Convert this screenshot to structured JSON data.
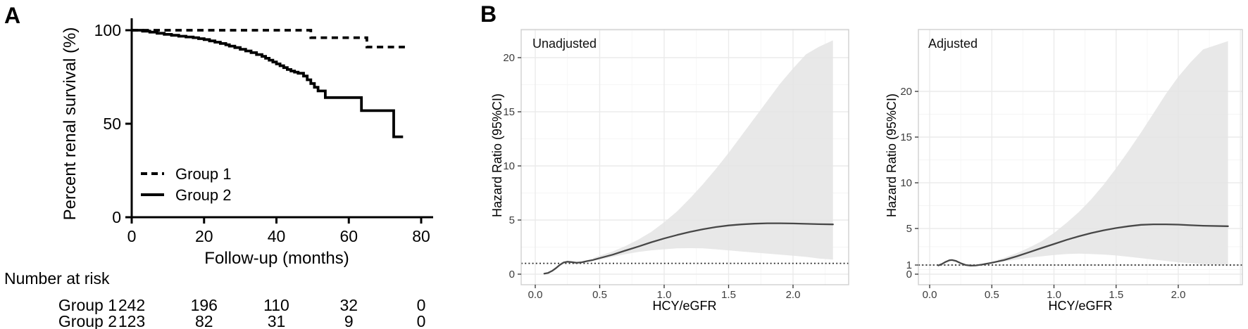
{
  "figure": {
    "panels": [
      {
        "label": "A"
      },
      {
        "label": "B"
      }
    ],
    "colors": {
      "km_line": "#000000",
      "spline_curve": "#474747",
      "ci_band": "#e4e4e4",
      "ref_line": "#2a2a2a",
      "gridline_major": "#ebebeb",
      "gridline_minor": "#f5f5f5",
      "panel_border": "#cfcfcf"
    }
  },
  "chart_data": [
    {
      "id": "km_survival",
      "type": "line",
      "subtype": "kaplan-meier-step",
      "xlabel": "Follow-up (months)",
      "ylabel": "Percent renal survival (%)",
      "xticks": [
        0,
        20,
        40,
        60,
        80
      ],
      "yticks": [
        0,
        50,
        100
      ],
      "xlim": [
        0,
        83
      ],
      "ylim": [
        0,
        100
      ],
      "grid": false,
      "legend_position": "inside-lower-left",
      "series": [
        {
          "name": "Group 1",
          "style": "dashed",
          "points": [
            [
              0,
              100
            ],
            [
              49.5,
              100
            ],
            [
              49.5,
              96
            ],
            [
              65,
              96
            ],
            [
              65,
              91
            ],
            [
              75.5,
              91
            ]
          ]
        },
        {
          "name": "Group 2",
          "style": "solid",
          "points": [
            [
              0,
              100
            ],
            [
              3,
              100
            ],
            [
              3,
              99.5
            ],
            [
              5,
              99.5
            ],
            [
              5,
              99
            ],
            [
              7,
              99
            ],
            [
              7,
              98.4
            ],
            [
              9,
              98.4
            ],
            [
              9,
              97.8
            ],
            [
              11,
              97.8
            ],
            [
              11,
              97.3
            ],
            [
              13,
              97.3
            ],
            [
              13,
              96.8
            ],
            [
              15,
              96.8
            ],
            [
              15,
              96.4
            ],
            [
              17,
              96.4
            ],
            [
              17,
              96
            ],
            [
              18.5,
              96
            ],
            [
              18.5,
              95.5
            ],
            [
              20,
              95.5
            ],
            [
              20,
              95
            ],
            [
              21.5,
              95
            ],
            [
              21.5,
              94.3
            ],
            [
              23,
              94.3
            ],
            [
              23,
              93.6
            ],
            [
              24.5,
              93.6
            ],
            [
              24.5,
              92.9
            ],
            [
              26,
              92.9
            ],
            [
              26,
              92.2
            ],
            [
              27,
              92.2
            ],
            [
              27,
              91.5
            ],
            [
              28.5,
              91.5
            ],
            [
              28.5,
              90.7
            ],
            [
              30,
              90.7
            ],
            [
              30,
              89.8
            ],
            [
              31.5,
              89.8
            ],
            [
              31.5,
              88.9
            ],
            [
              33,
              88.9
            ],
            [
              33,
              88
            ],
            [
              34.5,
              88
            ],
            [
              34.5,
              87
            ],
            [
              36,
              87
            ],
            [
              36,
              86
            ],
            [
              37,
              86
            ],
            [
              37,
              85
            ],
            [
              38,
              85
            ],
            [
              38,
              84
            ],
            [
              39,
              84
            ],
            [
              39,
              83
            ],
            [
              40,
              83
            ],
            [
              40,
              82
            ],
            [
              41,
              82
            ],
            [
              41,
              81
            ],
            [
              42,
              81
            ],
            [
              42,
              80
            ],
            [
              43,
              80
            ],
            [
              43,
              79
            ],
            [
              44,
              79
            ],
            [
              44,
              78.2
            ],
            [
              45,
              78.2
            ],
            [
              45,
              77.6
            ],
            [
              46,
              77.6
            ],
            [
              46,
              77
            ],
            [
              47.5,
              77
            ],
            [
              47.5,
              75.5
            ],
            [
              48.5,
              75.5
            ],
            [
              48.5,
              73.5
            ],
            [
              49.5,
              73.5
            ],
            [
              49.5,
              71.5
            ],
            [
              50.5,
              71.5
            ],
            [
              50.5,
              69.5
            ],
            [
              51.5,
              69.5
            ],
            [
              51.5,
              67.5
            ],
            [
              53.5,
              67.5
            ],
            [
              53.5,
              64
            ],
            [
              63.5,
              64
            ],
            [
              63.5,
              57
            ],
            [
              72.4,
              57
            ],
            [
              72.4,
              43
            ],
            [
              75,
              43
            ]
          ]
        }
      ],
      "risk_table": {
        "title": "Number at risk",
        "timepoints": [
          0,
          20,
          40,
          60,
          80
        ],
        "rows": [
          {
            "label": "Group 1",
            "values": [
              "242",
              "196",
              "110",
              "32",
              "0"
            ]
          },
          {
            "label": "Group 2",
            "values": [
              "123",
              "82",
              "31",
              "9",
              "0"
            ]
          }
        ]
      }
    },
    {
      "id": "spline_unadjusted",
      "type": "line",
      "subtype": "restricted-cubic-spline",
      "annotation": "Unadjusted",
      "xlabel": "HCY/eGFR",
      "ylabel": "Hazard Ratio (95%CI)",
      "xticks": [
        {
          "v": 0,
          "label": "0.0"
        },
        {
          "v": 0.5,
          "label": "0.5"
        },
        {
          "v": 1,
          "label": "1.0"
        },
        {
          "v": 1.5,
          "label": "1.5"
        },
        {
          "v": 2,
          "label": "2.0"
        }
      ],
      "yticks": [
        {
          "v": 0,
          "label": "0"
        },
        {
          "v": 5,
          "label": "5"
        },
        {
          "v": 10,
          "label": "10"
        },
        {
          "v": 15,
          "label": "15"
        },
        {
          "v": 20,
          "label": "20"
        }
      ],
      "xlim": [
        -0.11,
        2.43
      ],
      "ylim": [
        -1.0,
        22.6
      ],
      "grid": true,
      "ref_line_y": 1,
      "curve": [
        [
          0.07,
          0.05
        ],
        [
          0.1,
          0.12
        ],
        [
          0.13,
          0.3
        ],
        [
          0.16,
          0.55
        ],
        [
          0.19,
          0.85
        ],
        [
          0.22,
          1.08
        ],
        [
          0.25,
          1.15
        ],
        [
          0.28,
          1.12
        ],
        [
          0.32,
          1.05
        ],
        [
          0.36,
          1.1
        ],
        [
          0.4,
          1.2
        ],
        [
          0.45,
          1.32
        ],
        [
          0.5,
          1.48
        ],
        [
          0.6,
          1.8
        ],
        [
          0.7,
          2.18
        ],
        [
          0.8,
          2.55
        ],
        [
          0.9,
          2.95
        ],
        [
          1,
          3.3
        ],
        [
          1.1,
          3.62
        ],
        [
          1.2,
          3.9
        ],
        [
          1.3,
          4.15
        ],
        [
          1.4,
          4.35
        ],
        [
          1.5,
          4.5
        ],
        [
          1.6,
          4.6
        ],
        [
          1.7,
          4.66
        ],
        [
          1.8,
          4.7
        ],
        [
          1.9,
          4.7
        ],
        [
          2,
          4.68
        ],
        [
          2.1,
          4.65
        ],
        [
          2.2,
          4.62
        ],
        [
          2.31,
          4.6
        ]
      ],
      "ci": [
        [
          0.45,
          1.25,
          1.5
        ],
        [
          0.5,
          1.35,
          1.7
        ],
        [
          0.6,
          1.6,
          2.1
        ],
        [
          0.7,
          1.85,
          2.6
        ],
        [
          0.8,
          2.05,
          3.2
        ],
        [
          0.9,
          2.2,
          3.9
        ],
        [
          1,
          2.3,
          4.8
        ],
        [
          1.1,
          2.38,
          5.8
        ],
        [
          1.2,
          2.4,
          7.0
        ],
        [
          1.3,
          2.38,
          8.3
        ],
        [
          1.4,
          2.3,
          9.7
        ],
        [
          1.5,
          2.2,
          11.2
        ],
        [
          1.6,
          2.1,
          12.8
        ],
        [
          1.7,
          2.0,
          14.4
        ],
        [
          1.8,
          1.9,
          16.0
        ],
        [
          1.9,
          1.8,
          17.6
        ],
        [
          2,
          1.7,
          19.0
        ],
        [
          2.1,
          1.6,
          20.3
        ],
        [
          2.2,
          1.45,
          21.0
        ],
        [
          2.31,
          1.35,
          21.6
        ]
      ]
    },
    {
      "id": "spline_adjusted",
      "type": "line",
      "subtype": "restricted-cubic-spline",
      "annotation": "Adjusted",
      "xlabel": "HCY/eGFR",
      "ylabel": "Hazard Ratio (95%CI)",
      "xticks": [
        {
          "v": 0,
          "label": "0.0"
        },
        {
          "v": 0.5,
          "label": "0.5"
        },
        {
          "v": 1,
          "label": "1.0"
        },
        {
          "v": 1.5,
          "label": "1.5"
        },
        {
          "v": 2,
          "label": "2.0"
        }
      ],
      "yticks": [
        {
          "v": 0,
          "label": "0"
        },
        {
          "v": 1,
          "label": "1"
        },
        {
          "v": 5,
          "label": "5"
        },
        {
          "v": 10,
          "label": "10"
        },
        {
          "v": 15,
          "label": "15"
        },
        {
          "v": 20,
          "label": "20"
        }
      ],
      "xlim": [
        -0.09,
        2.61
      ],
      "ylim": [
        -1.15,
        26.8
      ],
      "grid": true,
      "ref_line_y": 1,
      "curve": [
        [
          0.07,
          0.95
        ],
        [
          0.1,
          1.12
        ],
        [
          0.13,
          1.35
        ],
        [
          0.16,
          1.52
        ],
        [
          0.18,
          1.55
        ],
        [
          0.21,
          1.45
        ],
        [
          0.25,
          1.2
        ],
        [
          0.29,
          1.0
        ],
        [
          0.33,
          0.94
        ],
        [
          0.37,
          0.95
        ],
        [
          0.42,
          1.05
        ],
        [
          0.47,
          1.18
        ],
        [
          0.5,
          1.25
        ],
        [
          0.6,
          1.55
        ],
        [
          0.7,
          1.95
        ],
        [
          0.8,
          2.4
        ],
        [
          0.9,
          2.85
        ],
        [
          1,
          3.3
        ],
        [
          1.1,
          3.75
        ],
        [
          1.2,
          4.15
        ],
        [
          1.3,
          4.5
        ],
        [
          1.4,
          4.8
        ],
        [
          1.5,
          5.05
        ],
        [
          1.6,
          5.25
        ],
        [
          1.7,
          5.4
        ],
        [
          1.8,
          5.45
        ],
        [
          1.9,
          5.45
        ],
        [
          2,
          5.42
        ],
        [
          2.1,
          5.35
        ],
        [
          2.2,
          5.3
        ],
        [
          2.4,
          5.25
        ]
      ],
      "ci": [
        [
          0.55,
          1.3,
          1.6
        ],
        [
          0.6,
          1.4,
          1.8
        ],
        [
          0.7,
          1.6,
          2.3
        ],
        [
          0.8,
          1.8,
          2.9
        ],
        [
          0.9,
          1.95,
          3.6
        ],
        [
          1,
          2.1,
          4.5
        ],
        [
          1.1,
          2.2,
          5.6
        ],
        [
          1.2,
          2.25,
          6.8
        ],
        [
          1.3,
          2.2,
          8.2
        ],
        [
          1.4,
          2.15,
          9.8
        ],
        [
          1.5,
          2.05,
          11.6
        ],
        [
          1.6,
          1.9,
          13.5
        ],
        [
          1.7,
          1.75,
          15.5
        ],
        [
          1.8,
          1.6,
          17.6
        ],
        [
          1.9,
          1.45,
          19.7
        ],
        [
          2,
          1.3,
          21.6
        ],
        [
          2.1,
          1.2,
          23.2
        ],
        [
          2.2,
          1.1,
          24.6
        ],
        [
          2.4,
          1.05,
          25.5
        ]
      ]
    }
  ]
}
